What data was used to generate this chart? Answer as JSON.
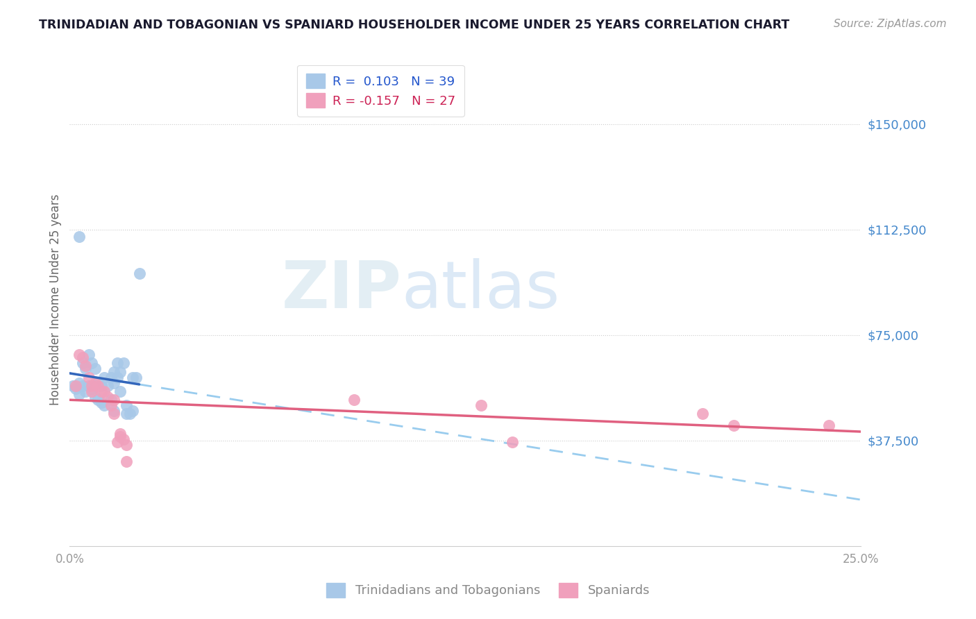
{
  "title": "TRINIDADIAN AND TOBAGONIAN VS SPANIARD HOUSEHOLDER INCOME UNDER 25 YEARS CORRELATION CHART",
  "source": "Source: ZipAtlas.com",
  "ylabel": "Householder Income Under 25 years",
  "xlim": [
    0.0,
    0.25
  ],
  "ylim": [
    0,
    175000
  ],
  "yticks": [
    0,
    37500,
    75000,
    112500,
    150000
  ],
  "ytick_labels": [
    "",
    "$37,500",
    "$75,000",
    "$112,500",
    "$150,000"
  ],
  "xticks": [
    0.0,
    0.05,
    0.1,
    0.15,
    0.2,
    0.25
  ],
  "xtick_labels": [
    "0.0%",
    "",
    "",
    "",
    "",
    "25.0%"
  ],
  "r_blue": 0.103,
  "n_blue": 39,
  "r_pink": -0.157,
  "n_pink": 27,
  "blue_color": "#a8c8e8",
  "pink_color": "#f0a0bc",
  "blue_solid_color": "#3366bb",
  "pink_solid_color": "#e06080",
  "blue_dash_color": "#99ccee",
  "watermark_zip": "ZIP",
  "watermark_atlas": "atlas",
  "legend_label_blue": "Trinidadians and Tobagonians",
  "legend_label_pink": "Spaniards",
  "blue_scatter": [
    [
      0.001,
      57000
    ],
    [
      0.002,
      56000
    ],
    [
      0.003,
      58000
    ],
    [
      0.003,
      54000
    ],
    [
      0.004,
      65000
    ],
    [
      0.004,
      57000
    ],
    [
      0.005,
      63000
    ],
    [
      0.005,
      55000
    ],
    [
      0.006,
      68000
    ],
    [
      0.006,
      57000
    ],
    [
      0.007,
      65000
    ],
    [
      0.007,
      56000
    ],
    [
      0.008,
      63000
    ],
    [
      0.008,
      53000
    ],
    [
      0.009,
      58000
    ],
    [
      0.009,
      52000
    ],
    [
      0.01,
      57000
    ],
    [
      0.01,
      51000
    ],
    [
      0.011,
      60000
    ],
    [
      0.011,
      50000
    ],
    [
      0.012,
      57000
    ],
    [
      0.013,
      60000
    ],
    [
      0.013,
      52000
    ],
    [
      0.014,
      62000
    ],
    [
      0.014,
      58000
    ],
    [
      0.015,
      65000
    ],
    [
      0.015,
      60000
    ],
    [
      0.016,
      62000
    ],
    [
      0.016,
      55000
    ],
    [
      0.017,
      65000
    ],
    [
      0.018,
      50000
    ],
    [
      0.018,
      47000
    ],
    [
      0.019,
      47000
    ],
    [
      0.02,
      48000
    ],
    [
      0.02,
      60000
    ],
    [
      0.021,
      60000
    ],
    [
      0.022,
      97000
    ],
    [
      0.003,
      110000
    ],
    [
      0.014,
      48000
    ]
  ],
  "pink_scatter": [
    [
      0.002,
      57000
    ],
    [
      0.003,
      68000
    ],
    [
      0.004,
      67000
    ],
    [
      0.005,
      64000
    ],
    [
      0.006,
      60000
    ],
    [
      0.007,
      57000
    ],
    [
      0.007,
      55000
    ],
    [
      0.008,
      58000
    ],
    [
      0.009,
      57000
    ],
    [
      0.01,
      55000
    ],
    [
      0.011,
      55000
    ],
    [
      0.012,
      53000
    ],
    [
      0.013,
      50000
    ],
    [
      0.014,
      52000
    ],
    [
      0.014,
      47000
    ],
    [
      0.015,
      37000
    ],
    [
      0.016,
      40000
    ],
    [
      0.016,
      39000
    ],
    [
      0.017,
      38000
    ],
    [
      0.018,
      30000
    ],
    [
      0.018,
      36000
    ],
    [
      0.09,
      52000
    ],
    [
      0.13,
      50000
    ],
    [
      0.14,
      37000
    ],
    [
      0.2,
      47000
    ],
    [
      0.21,
      43000
    ],
    [
      0.24,
      43000
    ]
  ]
}
